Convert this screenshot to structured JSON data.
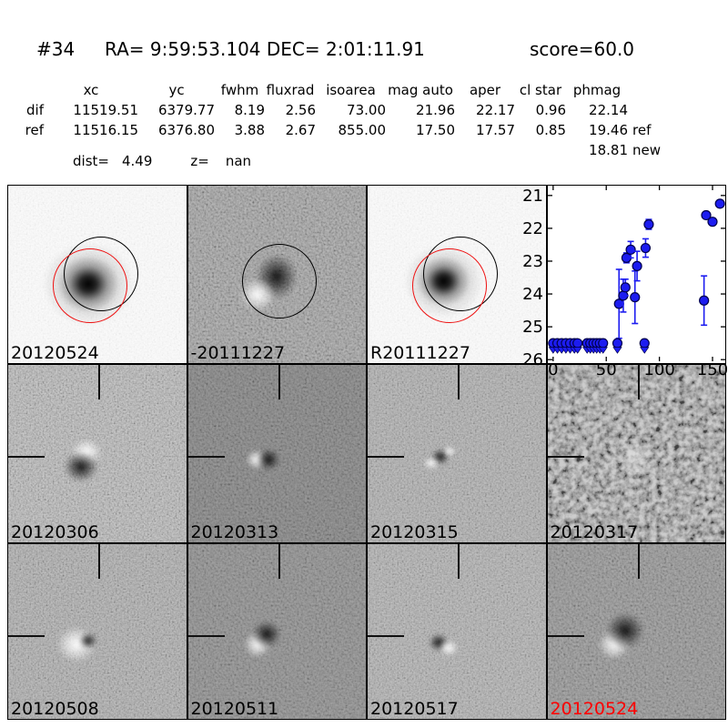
{
  "header": {
    "index": "#34",
    "coords": "RA= 9:59:53.104 DEC= 2:01:11.91",
    "score": "score=60.0"
  },
  "stats": {
    "columns": [
      "",
      "xc",
      "yc",
      "fwhm",
      "fluxrad",
      "isoarea",
      "mag auto",
      "aper",
      "cl star",
      "phmag",
      ""
    ],
    "rows": [
      {
        "label": "dif",
        "values": [
          "11519.51",
          "6379.77",
          "8.19",
          "2.56",
          "73.00",
          "21.96",
          "22.17",
          "0.96",
          "22.14"
        ],
        "suffix": ""
      },
      {
        "label": "ref",
        "values": [
          "11516.15",
          "6376.80",
          "3.88",
          "2.67",
          "855.00",
          "17.50",
          "17.57",
          "0.85",
          "19.46"
        ],
        "suffix": "ref"
      }
    ],
    "extra_row": {
      "value": "18.81",
      "suffix": "new"
    },
    "dist_label": "dist=",
    "dist_value": "4.49",
    "z_label": "z=",
    "z_value": "nan"
  },
  "panels": [
    {
      "label": "20120524"
    },
    {
      "label": "-20111227"
    },
    {
      "label": "R20111227"
    },
    {
      "label": "20120306"
    },
    {
      "label": "20120313"
    },
    {
      "label": "20120315"
    },
    {
      "label": "20120317"
    },
    {
      "label": "20120508"
    },
    {
      "label": "20120511"
    },
    {
      "label": "20120517"
    },
    {
      "label": "20120524",
      "label_color": "#ff0000"
    }
  ],
  "colors": {
    "marker_blue": "#1c1cf0",
    "marker_edge": "#00004d",
    "aperture_black": "#000000",
    "aperture_red": "#ee1111",
    "highlight_label_red": "#ff0000"
  },
  "chart_data": {
    "type": "scatter",
    "title": "",
    "xlabel": "",
    "ylabel": "",
    "x_ticks": [
      0,
      50,
      100,
      150
    ],
    "y_ticks": [
      21,
      22,
      23,
      24,
      25,
      26
    ],
    "xlim": [
      -5,
      162
    ],
    "ylim": [
      20.7,
      26.05
    ],
    "y_inverted": true,
    "grid": false,
    "legend": false,
    "series": [
      {
        "name": "detections",
        "marker": "circle",
        "color": "#1c1cf0",
        "points": [
          {
            "x": 62,
            "y": 24.3,
            "err": 1.05
          },
          {
            "x": 66,
            "y": 24.05,
            "err": 0.5
          },
          {
            "x": 68,
            "y": 23.8,
            "err": 0.25
          },
          {
            "x": 69,
            "y": 22.9,
            "err": 0.15
          },
          {
            "x": 73,
            "y": 22.65,
            "err": 0.25
          },
          {
            "x": 77,
            "y": 24.1,
            "err": 0.8
          },
          {
            "x": 79,
            "y": 23.15,
            "err": 0.45
          },
          {
            "x": 87,
            "y": 22.6,
            "err": 0.28
          },
          {
            "x": 90,
            "y": 21.88,
            "err": 0.15
          },
          {
            "x": 142,
            "y": 24.2,
            "err": 0.75
          },
          {
            "x": 144,
            "y": 21.6,
            "err": 0.1
          },
          {
            "x": 150,
            "y": 21.8,
            "err": 0.1
          },
          {
            "x": 157,
            "y": 21.25,
            "err": 0.1
          }
        ]
      },
      {
        "name": "upper-limits",
        "marker": "circle-down-arrow",
        "color": "#1c1cf0",
        "limit_mag": 25.5,
        "points": [
          {
            "x": 0,
            "y": 25.5
          },
          {
            "x": 4,
            "y": 25.5
          },
          {
            "x": 8,
            "y": 25.5
          },
          {
            "x": 12,
            "y": 25.5
          },
          {
            "x": 16,
            "y": 25.5
          },
          {
            "x": 20,
            "y": 25.5
          },
          {
            "x": 23,
            "y": 25.5
          },
          {
            "x": 32,
            "y": 25.5
          },
          {
            "x": 35,
            "y": 25.5
          },
          {
            "x": 38,
            "y": 25.5
          },
          {
            "x": 41,
            "y": 25.5
          },
          {
            "x": 44,
            "y": 25.5
          },
          {
            "x": 47,
            "y": 25.5
          },
          {
            "x": 60.5,
            "y": 25.5
          },
          {
            "x": 86,
            "y": 25.5
          }
        ]
      }
    ]
  }
}
